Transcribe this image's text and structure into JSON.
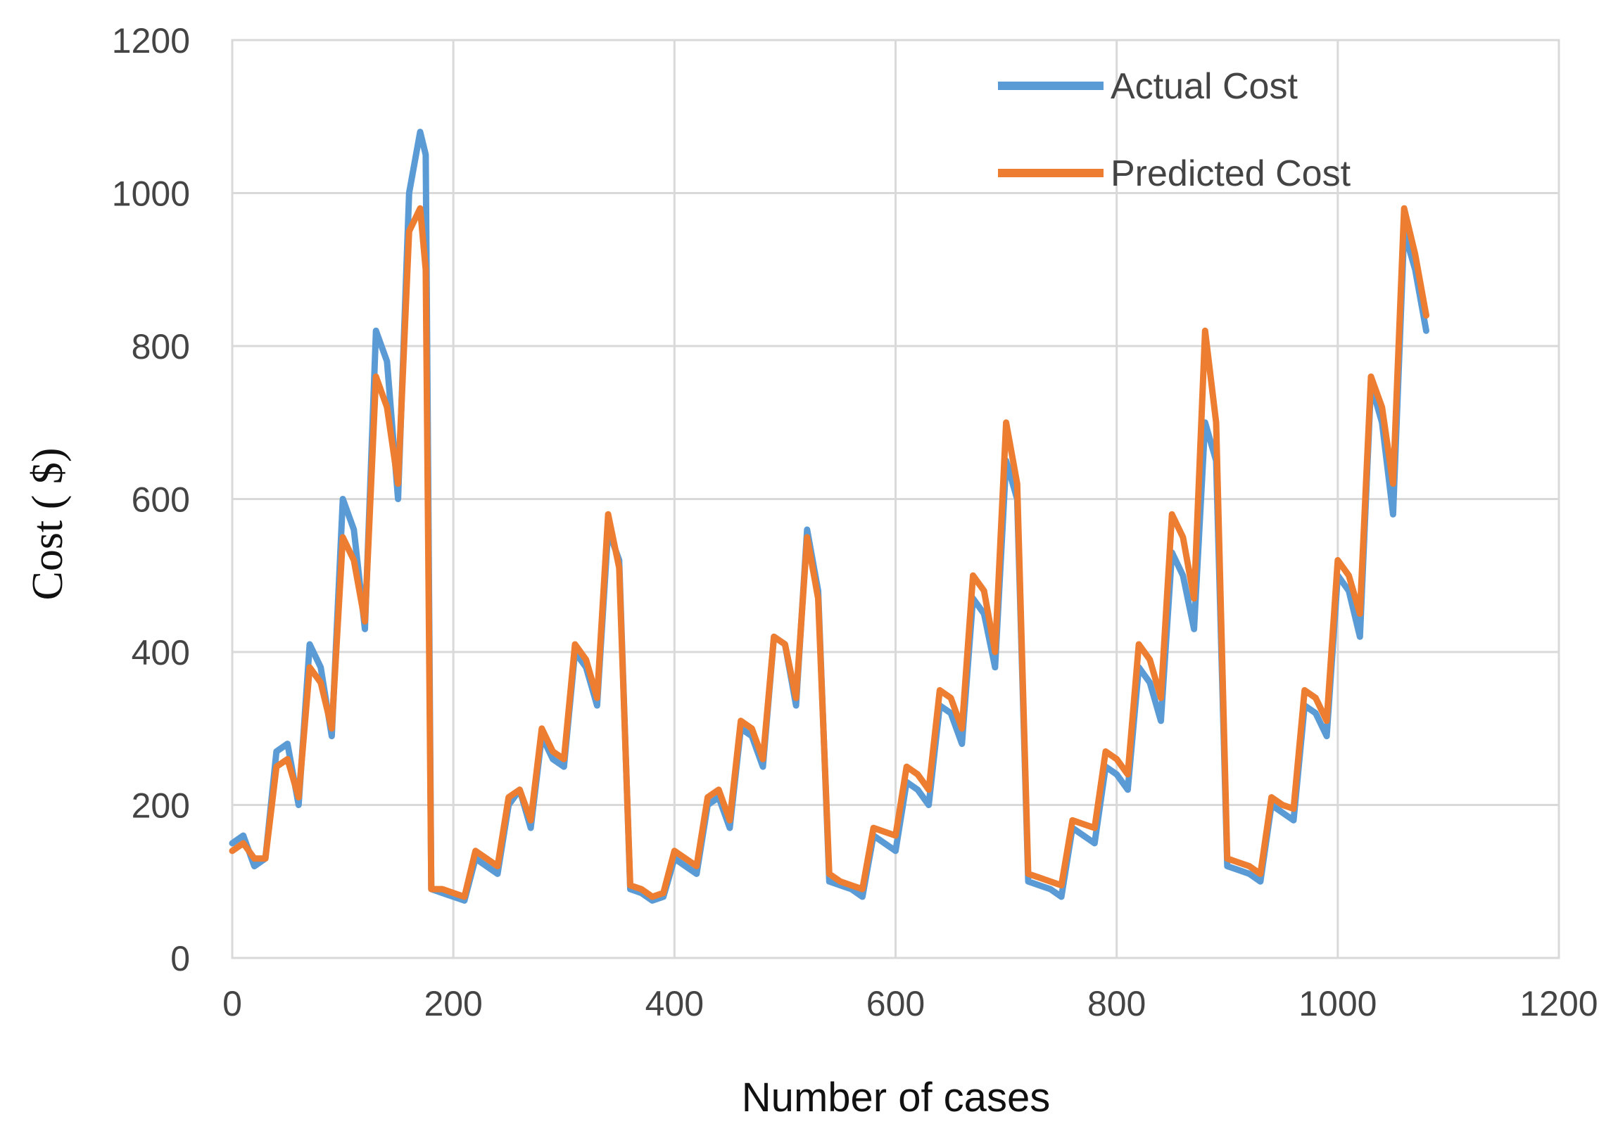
{
  "chart_data": {
    "type": "line",
    "title": "",
    "xlabel": "Number of cases",
    "ylabel": "Cost ( $)",
    "xlim": [
      0,
      1200
    ],
    "ylim": [
      0,
      1200
    ],
    "xticks": [
      0,
      200,
      400,
      600,
      800,
      1000,
      1200
    ],
    "yticks": [
      0,
      200,
      400,
      600,
      800,
      1000,
      1200
    ],
    "xtick_labels": [
      "0",
      "200",
      "400",
      "600",
      "800",
      "1000",
      "1200"
    ],
    "ytick_labels": [
      "0",
      "200",
      "400",
      "600",
      "800",
      "1000",
      "1200"
    ],
    "grid": true,
    "legend_position": "top-right",
    "series": [
      {
        "name": "Actual Cost",
        "color": "#5B9BD5",
        "x": [
          0,
          10,
          20,
          30,
          40,
          50,
          60,
          70,
          80,
          90,
          100,
          110,
          120,
          130,
          140,
          150,
          160,
          170,
          175,
          180,
          190,
          200,
          210,
          220,
          230,
          240,
          250,
          260,
          270,
          280,
          290,
          300,
          310,
          320,
          330,
          340,
          350,
          360,
          370,
          380,
          390,
          400,
          410,
          420,
          430,
          440,
          450,
          460,
          470,
          480,
          490,
          500,
          510,
          520,
          530,
          540,
          550,
          560,
          570,
          580,
          590,
          600,
          610,
          620,
          630,
          640,
          650,
          660,
          670,
          680,
          690,
          700,
          710,
          720,
          730,
          740,
          750,
          760,
          770,
          780,
          790,
          800,
          810,
          820,
          830,
          840,
          850,
          860,
          870,
          880,
          890,
          900,
          910,
          920,
          930,
          940,
          950,
          960,
          970,
          980,
          990,
          1000,
          1010,
          1020,
          1030,
          1040,
          1050,
          1060,
          1070,
          1080
        ],
        "y": [
          150,
          160,
          120,
          130,
          270,
          280,
          200,
          410,
          380,
          290,
          600,
          560,
          430,
          820,
          780,
          600,
          1000,
          1080,
          1050,
          90,
          85,
          80,
          75,
          130,
          120,
          110,
          200,
          220,
          170,
          290,
          260,
          250,
          400,
          380,
          330,
          560,
          520,
          90,
          85,
          75,
          80,
          130,
          120,
          110,
          200,
          210,
          170,
          300,
          290,
          250,
          420,
          410,
          330,
          560,
          480,
          100,
          95,
          90,
          80,
          160,
          150,
          140,
          230,
          220,
          200,
          330,
          320,
          280,
          470,
          450,
          380,
          650,
          600,
          100,
          95,
          90,
          80,
          170,
          160,
          150,
          250,
          240,
          220,
          380,
          360,
          310,
          530,
          500,
          430,
          700,
          650,
          120,
          115,
          110,
          100,
          200,
          190,
          180,
          330,
          320,
          290,
          500,
          480,
          420,
          750,
          700,
          580,
          950,
          900,
          820
        ]
      },
      {
        "name": "Predicted Cost",
        "color": "#ED7D31",
        "x": [
          0,
          10,
          20,
          30,
          40,
          50,
          60,
          70,
          80,
          90,
          100,
          110,
          120,
          130,
          140,
          150,
          160,
          170,
          175,
          180,
          190,
          200,
          210,
          220,
          230,
          240,
          250,
          260,
          270,
          280,
          290,
          300,
          310,
          320,
          330,
          340,
          350,
          360,
          370,
          380,
          390,
          400,
          410,
          420,
          430,
          440,
          450,
          460,
          470,
          480,
          490,
          500,
          510,
          520,
          530,
          540,
          550,
          560,
          570,
          580,
          590,
          600,
          610,
          620,
          630,
          640,
          650,
          660,
          670,
          680,
          690,
          700,
          710,
          720,
          730,
          740,
          750,
          760,
          770,
          780,
          790,
          800,
          810,
          820,
          830,
          840,
          850,
          860,
          870,
          880,
          890,
          900,
          910,
          920,
          930,
          940,
          950,
          960,
          970,
          980,
          990,
          1000,
          1010,
          1020,
          1030,
          1040,
          1050,
          1060,
          1070,
          1080
        ],
        "y": [
          140,
          150,
          130,
          130,
          250,
          260,
          210,
          380,
          360,
          300,
          550,
          520,
          440,
          760,
          720,
          620,
          950,
          980,
          900,
          90,
          90,
          85,
          80,
          140,
          130,
          120,
          210,
          220,
          180,
          300,
          270,
          260,
          410,
          390,
          340,
          580,
          510,
          95,
          90,
          80,
          85,
          140,
          130,
          120,
          210,
          220,
          180,
          310,
          300,
          260,
          420,
          410,
          340,
          550,
          470,
          110,
          100,
          95,
          90,
          170,
          165,
          160,
          250,
          240,
          220,
          350,
          340,
          300,
          500,
          480,
          400,
          700,
          620,
          110,
          105,
          100,
          95,
          180,
          175,
          170,
          270,
          260,
          240,
          410,
          390,
          340,
          580,
          550,
          470,
          820,
          700,
          130,
          125,
          120,
          110,
          210,
          200,
          195,
          350,
          340,
          310,
          520,
          500,
          450,
          760,
          720,
          620,
          980,
          920,
          840
        ]
      }
    ]
  }
}
